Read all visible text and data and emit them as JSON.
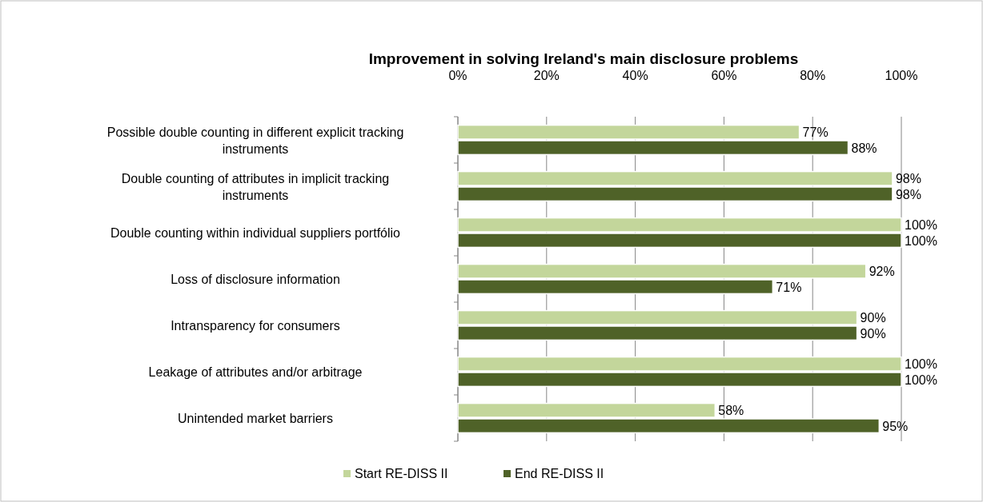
{
  "chart_data": {
    "type": "bar",
    "orientation": "horizontal",
    "title": "Improvement in solving Ireland's main disclosure problems",
    "categories": [
      "Possible double counting in different explicit tracking instruments",
      "Double counting of attributes in implicit tracking instruments",
      "Double counting within individual suppliers portfólio",
      "Loss of disclosure information",
      "Intransparency for consumers",
      "Leakage of attributes and/or arbitrage",
      "Unintended market barriers"
    ],
    "series": [
      {
        "name": "Start RE-DISS II",
        "color": "#c3d69b",
        "values": [
          77,
          98,
          100,
          92,
          90,
          100,
          58
        ],
        "value_labels": [
          "77%",
          "98%",
          "100%",
          "92%",
          "90%",
          "100%",
          "58%"
        ]
      },
      {
        "name": "End RE-DISS II",
        "color": "#4f6228",
        "values": [
          88,
          98,
          100,
          71,
          90,
          100,
          95
        ],
        "value_labels": [
          "88%",
          "98%",
          "100%",
          "71%",
          "90%",
          "100%",
          "95%"
        ]
      }
    ],
    "xlim": [
      0,
      100
    ],
    "xticks": [
      {
        "value": 0,
        "label": "0%"
      },
      {
        "value": 20,
        "label": "20%"
      },
      {
        "value": 40,
        "label": "40%"
      },
      {
        "value": 60,
        "label": "60%"
      },
      {
        "value": 80,
        "label": "80%"
      },
      {
        "value": 100,
        "label": "100%"
      }
    ],
    "grid": "x",
    "legend": "bottom"
  }
}
